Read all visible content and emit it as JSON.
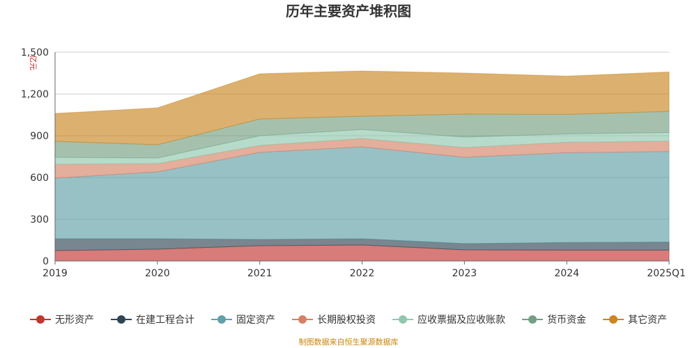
{
  "chart_data": {
    "type": "area",
    "stacked": true,
    "title": "历年主要资产堆积图",
    "unit_label": "亿元",
    "categories": [
      "2019",
      "2020",
      "2021",
      "2022",
      "2023",
      "2024",
      "2025Q1"
    ],
    "y_ticks": [
      "0",
      "300",
      "600",
      "900",
      "1,200",
      "1,500"
    ],
    "ylim": [
      0,
      1500
    ],
    "grid": true,
    "legend_position": "bottom",
    "series": [
      {
        "name": "无形资产",
        "color": "#c23531",
        "values": [
          75,
          85,
          110,
          115,
          80,
          78,
          78
        ]
      },
      {
        "name": "在建工程合计",
        "color": "#2f4554",
        "values": [
          85,
          75,
          45,
          45,
          45,
          55,
          58
        ]
      },
      {
        "name": "固定资产",
        "color": "#61a0a8",
        "values": [
          435,
          480,
          625,
          660,
          620,
          645,
          650
        ]
      },
      {
        "name": "长期股权投资",
        "color": "#d48265",
        "values": [
          100,
          60,
          50,
          60,
          70,
          75,
          75
        ]
      },
      {
        "name": "应收票据及应收账款",
        "color": "#91c7ae",
        "values": [
          50,
          40,
          70,
          65,
          75,
          60,
          62
        ]
      },
      {
        "name": "货币资金",
        "color": "#749f83",
        "values": [
          115,
          95,
          120,
          95,
          165,
          140,
          152
        ]
      },
      {
        "name": "其它资产",
        "color": "#ca8622",
        "values": [
          200,
          265,
          325,
          325,
          295,
          275,
          283
        ]
      }
    ]
  },
  "footer": "制图数据来自恒生聚源数据库"
}
